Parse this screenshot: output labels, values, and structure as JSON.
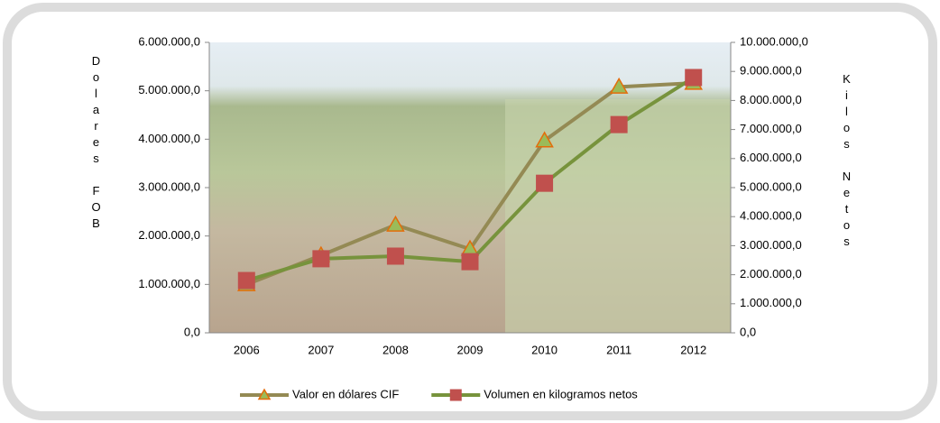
{
  "chart_data": {
    "type": "line",
    "y_label": "Dolares FOB",
    "y2_label": "Kilos Netos",
    "categories": [
      "2006",
      "2007",
      "2008",
      "2009",
      "2010",
      "2011",
      "2012"
    ],
    "series": [
      {
        "name": "Valor en dólares CIF",
        "color": "#948a54",
        "marker_color": "#9bbb59",
        "marker_edge": "#e46c0a",
        "marker": "triangle",
        "values": [
          1000000,
          1600000,
          2230000,
          1730000,
          3970000,
          5080000,
          5160000
        ]
      },
      {
        "name": "Volumen en kilogramos netos",
        "color": "#77933c",
        "marker_color": "#c0504d",
        "marker_edge": "#c0504d",
        "marker": "square",
        "axis": "y2",
        "values": [
          1800000,
          2550000,
          2640000,
          2450000,
          5150000,
          7170000,
          8790000
        ]
      }
    ],
    "ylim": [
      0,
      6000000
    ],
    "yticks": [
      {
        "value": 0,
        "label": "0,0"
      },
      {
        "value": 1000000,
        "label": "1.000.000,0"
      },
      {
        "value": 2000000,
        "label": "2.000.000,0"
      },
      {
        "value": 3000000,
        "label": "3.000.000,0"
      },
      {
        "value": 4000000,
        "label": "4.000.000,0"
      },
      {
        "value": 5000000,
        "label": "5.000.000,0"
      },
      {
        "value": 6000000,
        "label": "6.000.000,0"
      }
    ],
    "y2lim": [
      0,
      10000000
    ],
    "y2ticks": [
      {
        "value": 0,
        "label": "0,0"
      },
      {
        "value": 1000000,
        "label": "1.000.000,0"
      },
      {
        "value": 2000000,
        "label": "2.000.000,0"
      },
      {
        "value": 3000000,
        "label": "3.000.000,0"
      },
      {
        "value": 4000000,
        "label": "4.000.000,0"
      },
      {
        "value": 5000000,
        "label": "5.000.000,0"
      },
      {
        "value": 6000000,
        "label": "6.000.000,0"
      },
      {
        "value": 7000000,
        "label": "7.000.000,0"
      },
      {
        "value": 8000000,
        "label": "8.000.000,0"
      },
      {
        "value": 9000000,
        "label": "9.000.000,0"
      },
      {
        "value": 10000000,
        "label": "10.000.000,0"
      }
    ],
    "legend": "bottom",
    "grid": false
  }
}
